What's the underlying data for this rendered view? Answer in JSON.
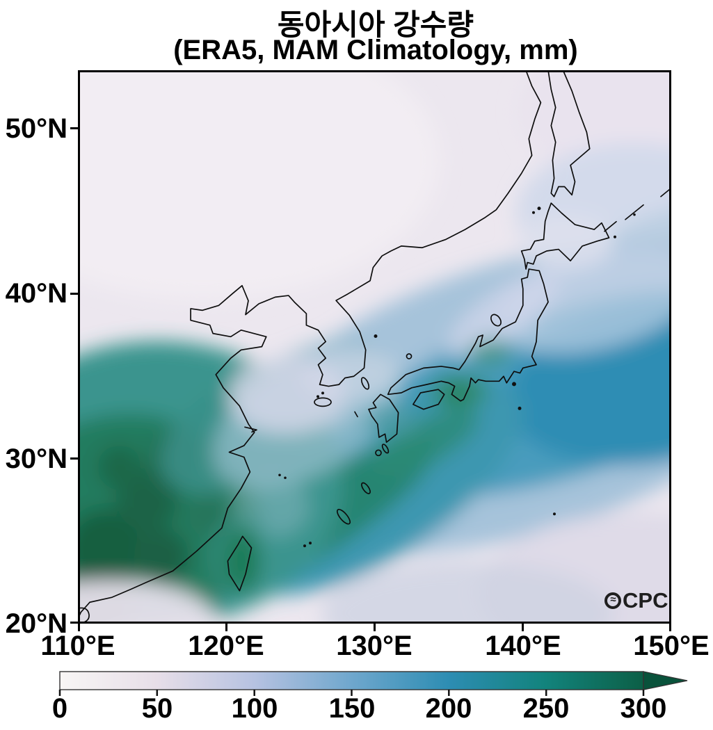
{
  "title": {
    "line1": "동아시아 강수량",
    "line2": "(ERA5, MAM Climatology, mm)"
  },
  "axes": {
    "x_ticks": [
      "110°E",
      "120°E",
      "130°E",
      "140°E",
      "150°E"
    ],
    "y_ticks": [
      "50°N",
      "40°N",
      "30°N",
      "20°N"
    ]
  },
  "colorbar": {
    "tick_labels": [
      "0",
      "50",
      "100",
      "150",
      "200",
      "250",
      "300"
    ],
    "min": 0,
    "max": 300,
    "extend": "max",
    "stops": [
      {
        "value": 0,
        "color": "#f8f6f5"
      },
      {
        "value": 50,
        "color": "#e7dee8"
      },
      {
        "value": 100,
        "color": "#b6c2e1"
      },
      {
        "value": 150,
        "color": "#6fa7cd"
      },
      {
        "value": 200,
        "color": "#2d8db3"
      },
      {
        "value": 250,
        "color": "#12837c"
      },
      {
        "value": 300,
        "color": "#0c5f46"
      }
    ],
    "arrow_color": "#09523b"
  },
  "watermark": {
    "text": "OCPC",
    "wave_glyph": "≈",
    "rest": "CPC"
  },
  "chart_data": {
    "type": "heatmap",
    "title": "동아시아 강수량",
    "subtitle": "(ERA5, MAM Climatology, mm)",
    "variable": "precipitation climatology (March-April-May)",
    "source": "ERA5",
    "units": "mm",
    "x_axis": {
      "tick_labels": [
        "110°E",
        "120°E",
        "130°E",
        "140°E",
        "150°E"
      ],
      "range_deg_east": [
        110,
        150
      ]
    },
    "y_axis": {
      "tick_labels": [
        "50°N",
        "40°N",
        "30°N",
        "20°N"
      ],
      "range_deg_north": [
        20,
        53.5
      ]
    },
    "colorbar_range": [
      0,
      300
    ],
    "colorbar_extend": "max",
    "grid": false,
    "legend_position": "bottom horizontal colorbar",
    "features": [
      {
        "region": "Southeast China interior (110-120E, 22-30N)",
        "approx_value_mm": "220-300+"
      },
      {
        "region": "Eastern Taiwan mountains",
        "approx_value_mm": "250-300"
      },
      {
        "region": "Subtropical Pacific rain band from Ryukyu Islands northeastward past 150E (25-38N)",
        "approx_value_mm": "150-230"
      },
      {
        "region": "Southern Japan coasts (SE Kyushu, Shikoku, Kii Peninsula)",
        "approx_value_mm": "200-280"
      },
      {
        "region": "East China Sea / Yangtze delta coast",
        "approx_value_mm": "100-160"
      },
      {
        "region": "Korean Peninsula",
        "approx_value_mm": "60-120"
      },
      {
        "region": "Sea of Japan / northern Honshu and Hokkaido",
        "approx_value_mm": "50-100"
      },
      {
        "region": "North China, Manchuria, Russian Far East, Sea of Okhotsk",
        "approx_value_mm": "20-60"
      },
      {
        "region": "South China Sea corner and far southeast ocean corner",
        "approx_value_mm": "40-80"
      }
    ]
  }
}
